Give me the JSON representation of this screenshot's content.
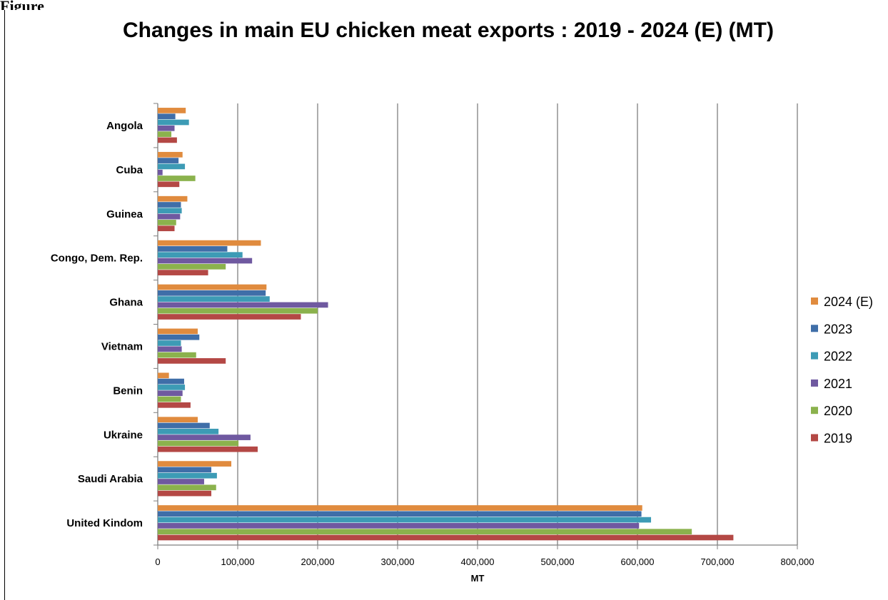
{
  "figure_label": "Figure",
  "chart_data": {
    "type": "bar",
    "orientation": "horizontal",
    "title": "Changes in main EU chicken meat exports  : 2019 - 2024 (E)  (MT)",
    "xlabel": "MT",
    "ylabel": "",
    "xlim": [
      0,
      800000
    ],
    "xticks": [
      0,
      100000,
      200000,
      300000,
      400000,
      500000,
      600000,
      700000,
      800000
    ],
    "xtick_labels": [
      "0",
      "100,000",
      "200,000",
      "300,000",
      "400,000",
      "500,000",
      "600,000",
      "700,000",
      "800,000"
    ],
    "grid": "vertical",
    "legend_position": "right",
    "categories": [
      "Angola",
      "Cuba",
      "Guinea",
      "Congo, Dem. Rep.",
      "Ghana",
      "Vietnam",
      "Benin",
      "Ukraine",
      "Saudi Arabia",
      "United Kindom"
    ],
    "series": [
      {
        "name": "2024 (E)",
        "color": "#e08b3e",
        "values": [
          35000,
          31000,
          37000,
          129000,
          136000,
          50000,
          14000,
          50000,
          92000,
          606000
        ]
      },
      {
        "name": "2023",
        "color": "#3f6ea8",
        "values": [
          22000,
          26000,
          29000,
          87000,
          135000,
          52000,
          33000,
          65000,
          67000,
          605000
        ]
      },
      {
        "name": "2022",
        "color": "#3d9bb5",
        "values": [
          39000,
          34000,
          30000,
          106000,
          140000,
          29000,
          34000,
          76000,
          74000,
          617000
        ]
      },
      {
        "name": "2021",
        "color": "#6f59a0",
        "values": [
          21000,
          6000,
          28000,
          118000,
          213000,
          30000,
          31000,
          116000,
          58000,
          602000
        ]
      },
      {
        "name": "2020",
        "color": "#8bb24d",
        "values": [
          17000,
          47000,
          23000,
          85000,
          200000,
          48000,
          29000,
          101000,
          73000,
          668000
        ]
      },
      {
        "name": "2019",
        "color": "#b44845",
        "values": [
          24000,
          27000,
          21000,
          63000,
          179000,
          85000,
          41000,
          125000,
          67000,
          720000
        ]
      }
    ]
  }
}
